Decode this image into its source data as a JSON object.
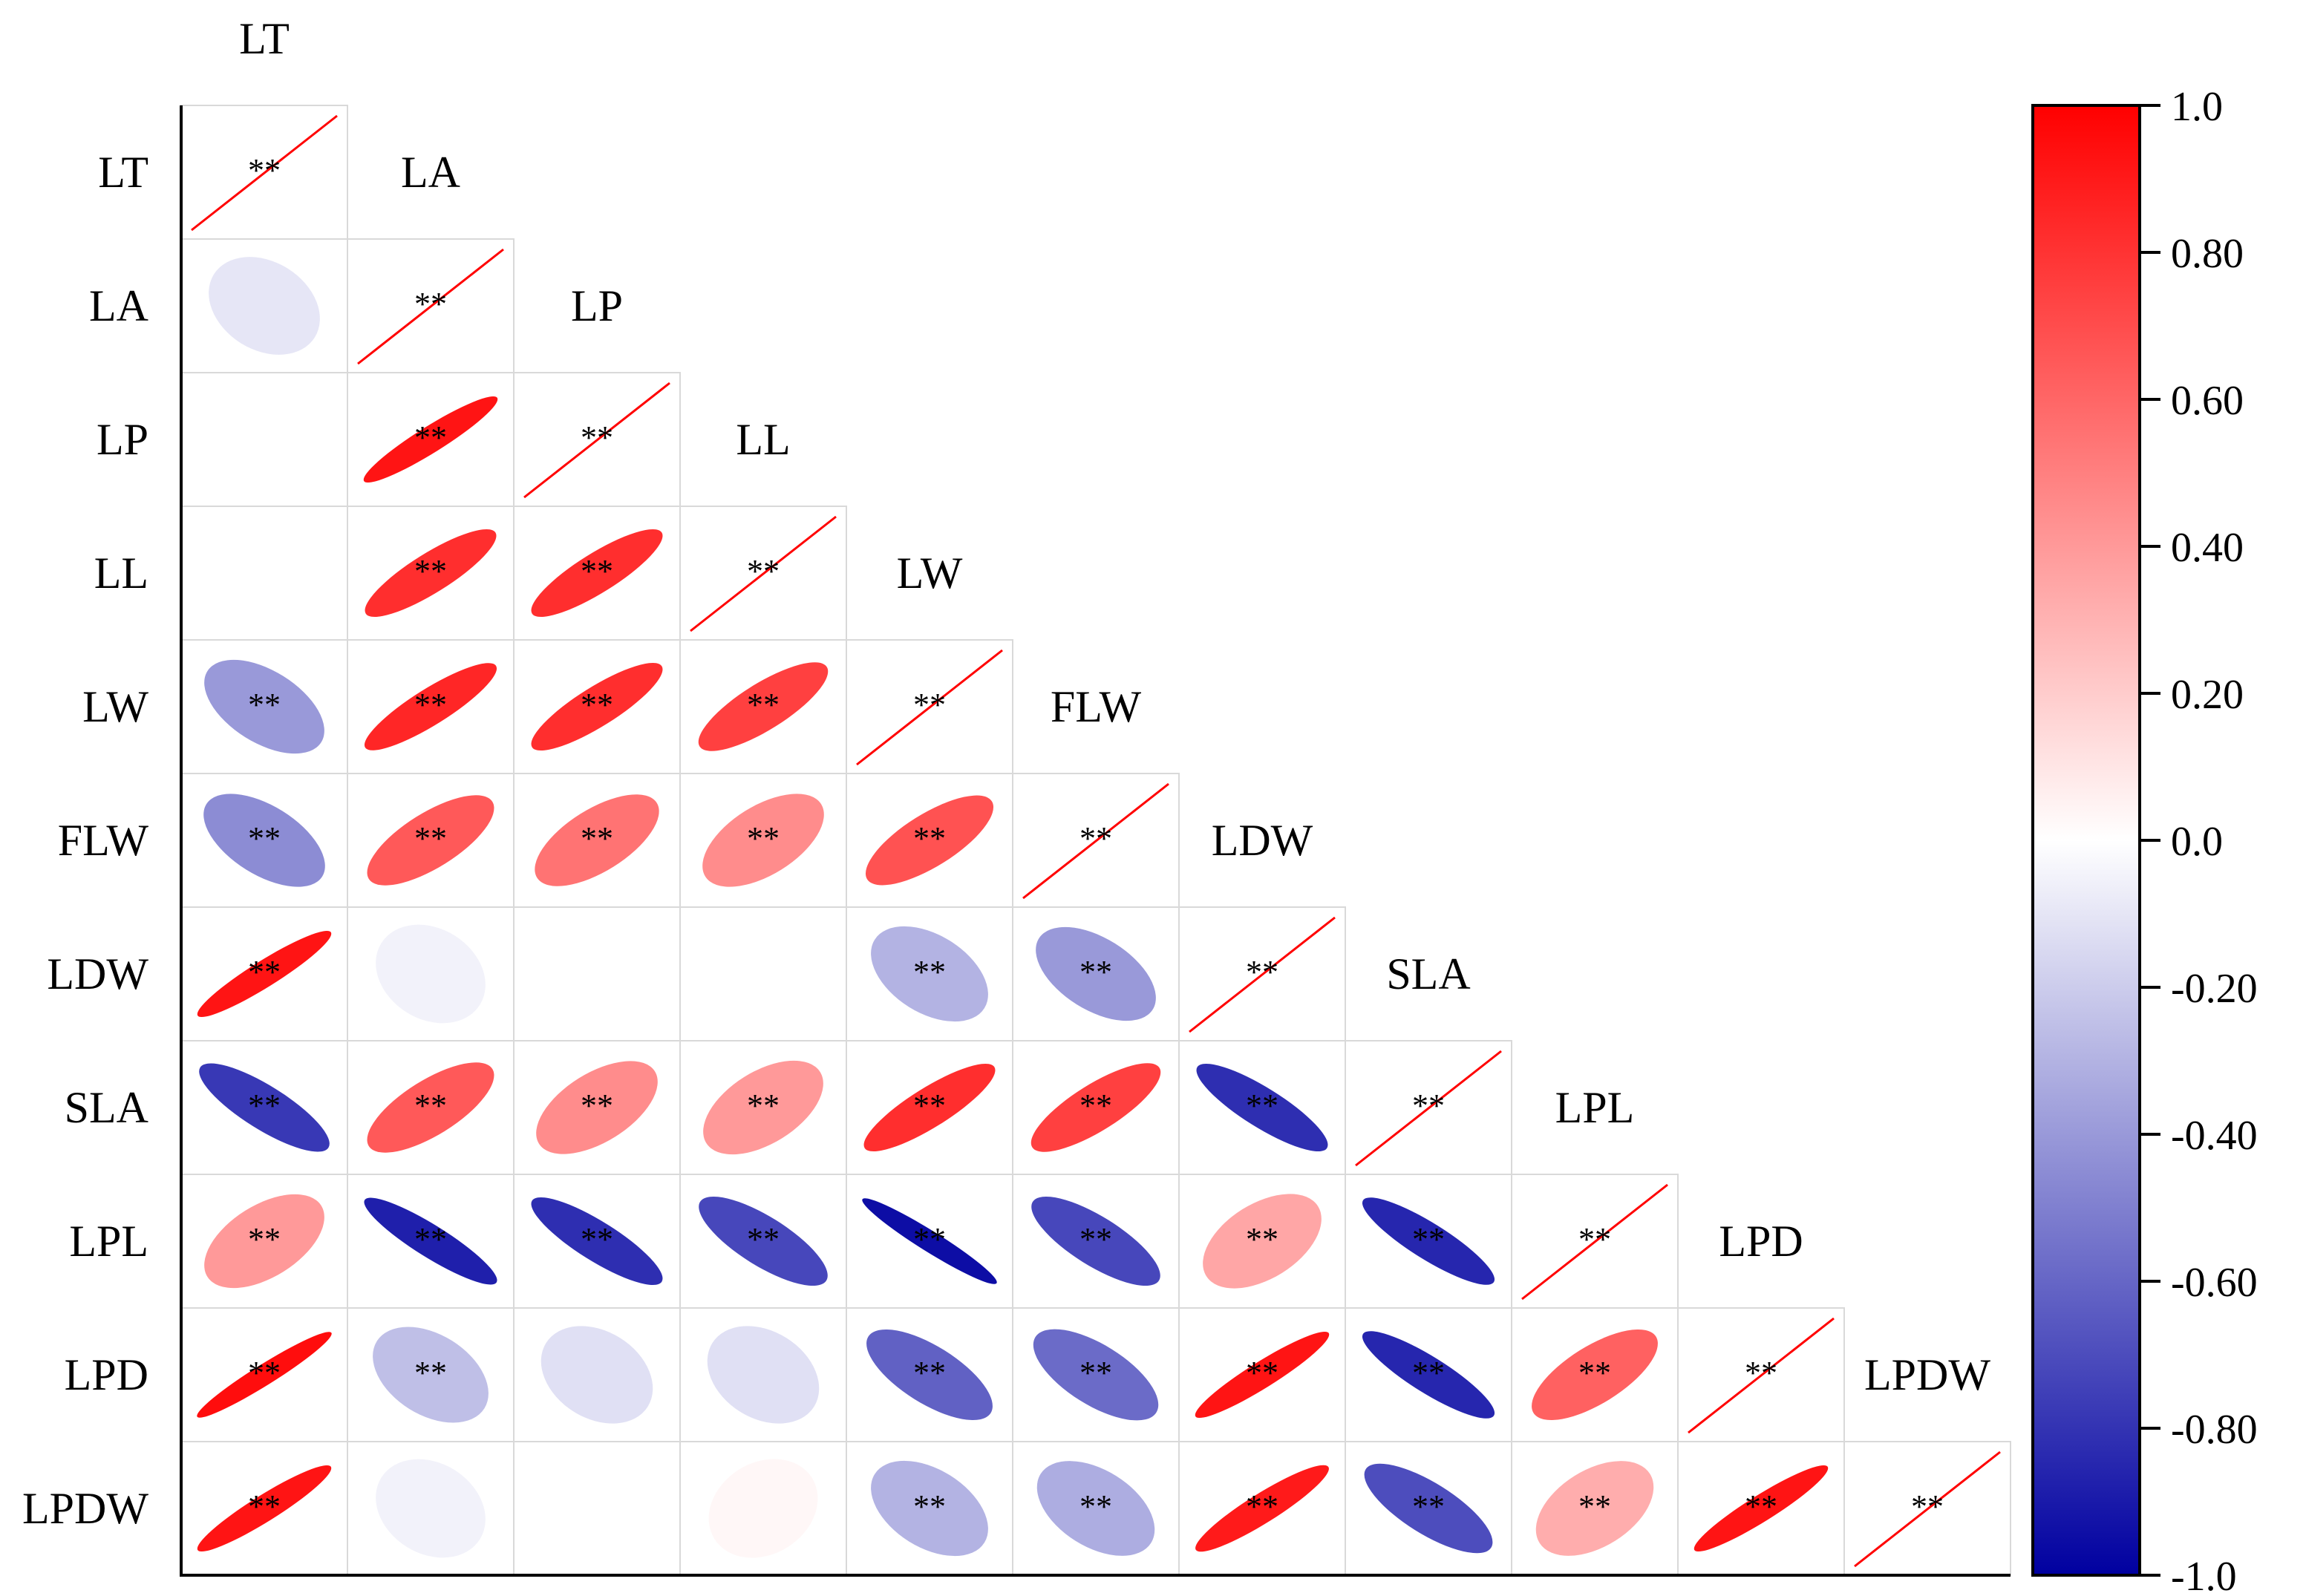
{
  "chart_data": {
    "type": "heatmap",
    "style": "lower-triangle correlation ellipse matrix",
    "variables": [
      "LT",
      "LA",
      "LP",
      "LL",
      "LW",
      "FLW",
      "LDW",
      "SLA",
      "LPL",
      "LPD",
      "LPDW"
    ],
    "correlation": [
      [
        1.0,
        null,
        null,
        null,
        null,
        null,
        null,
        null,
        null,
        null,
        null
      ],
      [
        -0.1,
        1.0,
        null,
        null,
        null,
        null,
        null,
        null,
        null,
        null,
        null
      ],
      [
        0.0,
        0.92,
        1.0,
        null,
        null,
        null,
        null,
        null,
        null,
        null,
        null
      ],
      [
        0.0,
        0.82,
        0.82,
        1.0,
        null,
        null,
        null,
        null,
        null,
        null,
        null
      ],
      [
        -0.4,
        0.85,
        0.82,
        0.75,
        1.0,
        null,
        null,
        null,
        null,
        null,
        null
      ],
      [
        -0.45,
        0.65,
        0.55,
        0.45,
        0.68,
        1.0,
        null,
        null,
        null,
        null,
        null
      ],
      [
        0.92,
        -0.05,
        0.0,
        0.0,
        -0.3,
        -0.4,
        1.0,
        null,
        null,
        null,
        null
      ],
      [
        -0.78,
        0.65,
        0.45,
        0.4,
        0.82,
        0.75,
        -0.82,
        1.0,
        null,
        null,
        null
      ],
      [
        0.4,
        -0.88,
        -0.82,
        -0.72,
        -0.95,
        -0.72,
        0.35,
        -0.85,
        1.0,
        null,
        null
      ],
      [
        0.95,
        -0.25,
        -0.12,
        -0.12,
        -0.62,
        -0.58,
        0.92,
        -0.85,
        0.62,
        1.0,
        null
      ],
      [
        0.92,
        -0.05,
        0.0,
        0.03,
        -0.3,
        -0.32,
        0.9,
        -0.7,
        0.32,
        0.92,
        1.0
      ]
    ],
    "significance": [
      [
        "**",
        null,
        null,
        null,
        null,
        null,
        null,
        null,
        null,
        null,
        null
      ],
      [
        "",
        "**",
        null,
        null,
        null,
        null,
        null,
        null,
        null,
        null,
        null
      ],
      [
        "",
        "**",
        "**",
        null,
        null,
        null,
        null,
        null,
        null,
        null,
        null
      ],
      [
        "",
        "**",
        "**",
        "**",
        null,
        null,
        null,
        null,
        null,
        null,
        null
      ],
      [
        "**",
        "**",
        "**",
        "**",
        "**",
        null,
        null,
        null,
        null,
        null,
        null
      ],
      [
        "**",
        "**",
        "**",
        "**",
        "**",
        "**",
        null,
        null,
        null,
        null,
        null
      ],
      [
        "**",
        "",
        "",
        "",
        "**",
        "**",
        "**",
        null,
        null,
        null,
        null
      ],
      [
        "**",
        "**",
        "**",
        "**",
        "**",
        "**",
        "**",
        "**",
        null,
        null,
        null
      ],
      [
        "**",
        "**",
        "**",
        "**",
        "**",
        "**",
        "**",
        "**",
        "**",
        null,
        null
      ],
      [
        "**",
        "**",
        "",
        "",
        "**",
        "**",
        "**",
        "**",
        "**",
        "**",
        null
      ],
      [
        "**",
        "",
        "",
        "",
        "**",
        "**",
        "**",
        "**",
        "**",
        "**",
        "**"
      ]
    ],
    "colorbar": {
      "range": [
        -1.0,
        1.0
      ],
      "ticks": [
        1.0,
        0.8,
        0.6,
        0.4,
        0.2,
        0.0,
        -0.2,
        -0.4,
        -0.6,
        -0.8,
        -1.0
      ],
      "tick_labels": [
        "1.0",
        "0.80",
        "0.60",
        "0.40",
        "0.20",
        "0.0",
        "-0.20",
        "-0.40",
        "-0.60",
        "-0.80",
        "-1.0"
      ],
      "low_color": "#0000a0",
      "mid_color": "#ffffff",
      "high_color": "#ff0000",
      "placement": "right"
    }
  },
  "colors": {
    "diagonal_line": "#ff0000",
    "grid_line": "#d9d9d9",
    "axis": "#000000"
  }
}
